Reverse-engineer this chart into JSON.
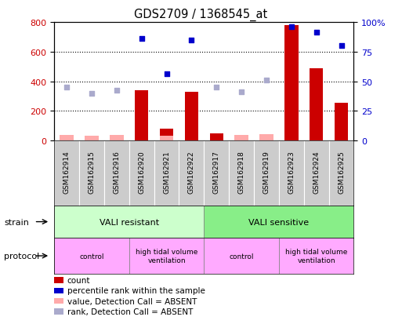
{
  "title": "GDS2709 / 1368545_at",
  "samples": [
    "GSM162914",
    "GSM162915",
    "GSM162916",
    "GSM162920",
    "GSM162921",
    "GSM162922",
    "GSM162917",
    "GSM162918",
    "GSM162919",
    "GSM162923",
    "GSM162924",
    "GSM162925"
  ],
  "count_values": [
    null,
    null,
    null,
    340,
    80,
    330,
    50,
    null,
    null,
    780,
    490,
    255
  ],
  "count_absent": [
    35,
    30,
    35,
    null,
    30,
    null,
    null,
    40,
    45,
    null,
    null,
    null
  ],
  "rank_present_pct": [
    null,
    null,
    null,
    86.25,
    56.25,
    85.0,
    null,
    null,
    null,
    96.25,
    91.25,
    80.0
  ],
  "rank_absent_pct": [
    45.0,
    40.0,
    42.5,
    null,
    null,
    null,
    45.0,
    41.25,
    51.25,
    null,
    null,
    null
  ],
  "ylim_left": [
    0,
    800
  ],
  "ylim_right": [
    0,
    100
  ],
  "yticks_left": [
    0,
    200,
    400,
    600,
    800
  ],
  "yticks_right": [
    0,
    25,
    50,
    75,
    100
  ],
  "bar_color": "#cc0000",
  "absent_bar_color": "#ffaaaa",
  "rank_present_color": "#0000cc",
  "rank_absent_color": "#aaaacc",
  "tick_label_color_left": "#cc0000",
  "tick_label_color_right": "#0000cc",
  "strain_resistant_label": "VALI resistant",
  "strain_sensitive_label": "VALI sensitive",
  "strain_resistant_color": "#ccffcc",
  "strain_sensitive_color": "#88ee88",
  "protocol_control_color": "#ffaaff",
  "protocol_htv_color": "#ee88ee",
  "strain_label_text": "strain",
  "protocol_label_text": "protocol",
  "legend_items": [
    {
      "color": "#cc0000",
      "label": "count"
    },
    {
      "color": "#0000cc",
      "label": "percentile rank within the sample"
    },
    {
      "color": "#ffaaaa",
      "label": "value, Detection Call = ABSENT"
    },
    {
      "color": "#aaaacc",
      "label": "rank, Detection Call = ABSENT"
    }
  ]
}
